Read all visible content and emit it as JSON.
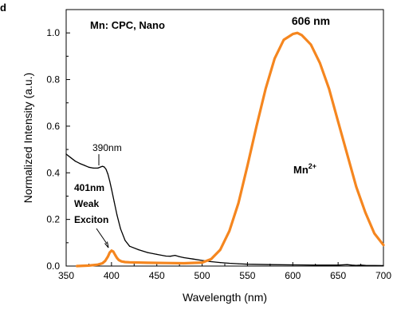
{
  "corner_letter": "d",
  "chart_data": {
    "type": "line",
    "xlabel": "Wavelength (nm)",
    "ylabel": "Normalized Intensity (a.u.)",
    "xlim": [
      350,
      700
    ],
    "ylim": [
      0,
      1.1
    ],
    "x_ticks": [
      "350",
      "400",
      "450",
      "500",
      "550",
      "600",
      "650",
      "700"
    ],
    "y_ticks": [
      "0.0",
      "0.2",
      "0.4",
      "0.6",
      "0.8",
      "1.0"
    ],
    "grid": false,
    "series": [
      {
        "color": "#000000",
        "x": [
          350,
          355,
          360,
          365,
          370,
          375,
          380,
          385,
          388,
          390,
          392,
          394,
          396,
          398,
          400,
          403,
          406,
          410,
          415,
          420,
          430,
          440,
          450,
          460,
          465,
          470,
          475,
          480,
          490,
          500,
          510,
          520,
          530,
          540,
          550,
          575,
          600,
          625,
          650,
          660,
          665,
          670,
          675,
          680,
          700
        ],
        "y": [
          0.48,
          0.465,
          0.45,
          0.44,
          0.432,
          0.424,
          0.42,
          0.42,
          0.425,
          0.428,
          0.425,
          0.415,
          0.395,
          0.365,
          0.33,
          0.275,
          0.22,
          0.16,
          0.11,
          0.085,
          0.07,
          0.058,
          0.05,
          0.043,
          0.042,
          0.046,
          0.04,
          0.036,
          0.03,
          0.024,
          0.019,
          0.015,
          0.012,
          0.01,
          0.008,
          0.006,
          0.005,
          0.004,
          0.004,
          0.006,
          0.004,
          0.003,
          0.004,
          0.003,
          0.002
        ]
      },
      {
        "color": "#f5861f",
        "x": [
          362,
          375,
          385,
          390,
          393,
          396,
          398,
          400,
          402,
          404,
          406,
          408,
          411,
          415,
          420,
          440,
          460,
          480,
          500,
          510,
          520,
          530,
          540,
          550,
          560,
          570,
          580,
          590,
          600,
          605,
          610,
          620,
          630,
          640,
          650,
          660,
          670,
          680,
          690,
          700
        ],
        "y": [
          0.0,
          0.002,
          0.006,
          0.012,
          0.022,
          0.04,
          0.058,
          0.066,
          0.062,
          0.048,
          0.035,
          0.026,
          0.02,
          0.017,
          0.016,
          0.014,
          0.013,
          0.012,
          0.015,
          0.03,
          0.07,
          0.15,
          0.27,
          0.43,
          0.6,
          0.76,
          0.89,
          0.97,
          0.995,
          1.0,
          0.99,
          0.95,
          0.87,
          0.76,
          0.62,
          0.48,
          0.34,
          0.23,
          0.14,
          0.09
        ]
      }
    ],
    "annotations": [
      {
        "text": "Mn: CPC, Nano"
      },
      {
        "text": "606 nm"
      },
      {
        "text": "390nm"
      },
      {
        "text": "Mn",
        "superscript": "2+"
      },
      {
        "lines": [
          "401nm",
          "Weak",
          "Exciton"
        ]
      }
    ]
  }
}
